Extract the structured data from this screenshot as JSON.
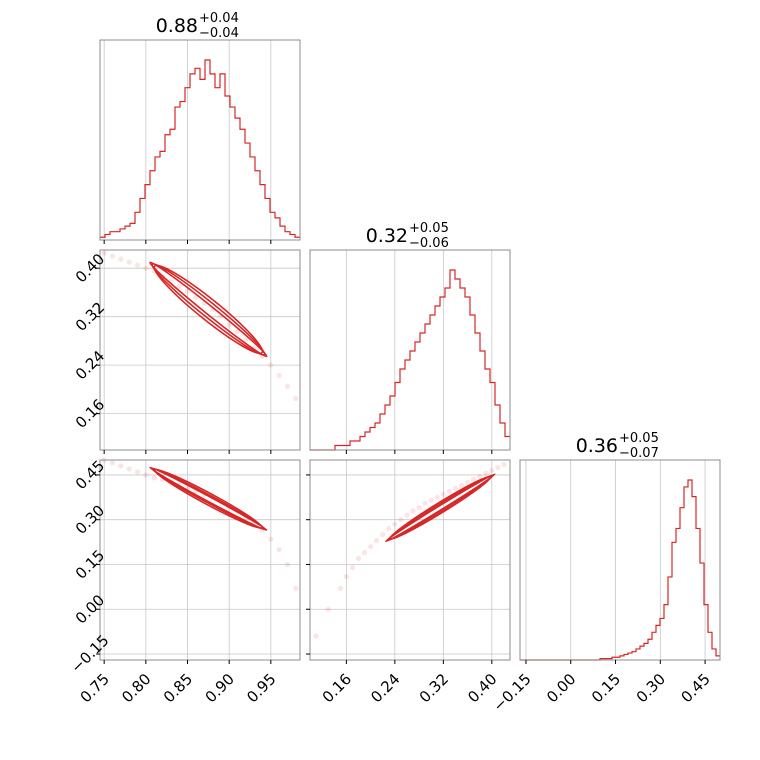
{
  "chart_data": {
    "type": "corner",
    "grid": true,
    "colors": {
      "series": "#d62728"
    },
    "parameters": [
      {
        "title": "0.88",
        "plus": "+0.04",
        "minus": "−0.04",
        "range": [
          0.745,
          0.985
        ],
        "ticks": [
          0.75,
          0.8,
          0.85,
          0.9,
          0.95
        ],
        "tick_labels": [
          "0.75",
          "0.80",
          "0.85",
          "0.90",
          "0.95"
        ]
      },
      {
        "title": "0.32",
        "plus": "+0.05",
        "minus": "−0.06",
        "range": [
          0.1,
          0.43
        ],
        "ticks": [
          0.16,
          0.24,
          0.32,
          0.4
        ],
        "tick_labels": [
          "0.16",
          "0.24",
          "0.32",
          "0.40"
        ]
      },
      {
        "title": "0.36",
        "plus": "+0.05",
        "minus": "−0.07",
        "range": [
          -0.17,
          0.5
        ],
        "ticks": [
          -0.15,
          0.0,
          0.15,
          0.3,
          0.45
        ],
        "tick_labels": [
          "−0.15",
          "0.00",
          "0.15",
          "0.30",
          "0.45"
        ]
      }
    ],
    "histograms": [
      {
        "param": 0,
        "values": [
          1,
          2,
          3,
          3,
          4,
          5,
          6,
          10,
          15,
          20,
          25,
          30,
          32,
          38,
          40,
          48,
          50,
          55,
          60,
          62,
          58,
          65,
          60,
          55,
          60,
          52,
          48,
          44,
          40,
          35,
          30,
          25,
          20,
          15,
          10,
          8,
          5,
          3,
          2,
          1
        ]
      },
      {
        "param": 1,
        "values": [
          0,
          0,
          0,
          0,
          0,
          1,
          1,
          1,
          2,
          2,
          3,
          4,
          5,
          6,
          8,
          10,
          12,
          15,
          18,
          20,
          22,
          24,
          26,
          28,
          30,
          32,
          34,
          36,
          40,
          38,
          36,
          34,
          30,
          26,
          22,
          18,
          15,
          10,
          6,
          3
        ]
      },
      {
        "param": 2,
        "values": [
          0,
          0,
          0,
          0,
          0,
          0,
          0,
          0,
          0,
          0,
          0,
          0,
          0,
          0,
          0,
          0,
          0,
          0,
          0,
          0,
          1,
          1,
          1,
          2,
          2,
          3,
          4,
          5,
          6,
          8,
          10,
          12,
          15,
          20,
          25,
          30,
          40,
          60,
          85,
          95,
          110,
          125,
          130,
          118,
          95,
          70,
          40,
          20,
          8,
          3
        ]
      }
    ],
    "scatter": [
      {
        "x_param": 0,
        "y_param": 1,
        "points": [
          [
            0.75,
            0.425
          ],
          [
            0.76,
            0.42
          ],
          [
            0.77,
            0.415
          ],
          [
            0.78,
            0.41
          ],
          [
            0.79,
            0.405
          ],
          [
            0.8,
            0.4
          ],
          [
            0.81,
            0.395
          ],
          [
            0.82,
            0.385
          ],
          [
            0.83,
            0.378
          ],
          [
            0.84,
            0.37
          ],
          [
            0.85,
            0.362
          ],
          [
            0.86,
            0.352
          ],
          [
            0.87,
            0.342
          ],
          [
            0.88,
            0.332
          ],
          [
            0.89,
            0.32
          ],
          [
            0.9,
            0.307
          ],
          [
            0.91,
            0.295
          ],
          [
            0.92,
            0.282
          ],
          [
            0.93,
            0.268
          ],
          [
            0.94,
            0.254
          ],
          [
            0.95,
            0.24
          ],
          [
            0.96,
            0.223
          ],
          [
            0.97,
            0.205
          ],
          [
            0.98,
            0.185
          ]
        ]
      },
      {
        "x_param": 0,
        "y_param": 2,
        "points": [
          [
            0.75,
            0.5
          ],
          [
            0.76,
            0.49
          ],
          [
            0.77,
            0.48
          ],
          [
            0.78,
            0.47
          ],
          [
            0.79,
            0.46
          ],
          [
            0.8,
            0.45
          ],
          [
            0.81,
            0.44
          ],
          [
            0.82,
            0.435
          ],
          [
            0.83,
            0.425
          ],
          [
            0.84,
            0.415
          ],
          [
            0.85,
            0.405
          ],
          [
            0.86,
            0.395
          ],
          [
            0.87,
            0.385
          ],
          [
            0.88,
            0.375
          ],
          [
            0.89,
            0.36
          ],
          [
            0.9,
            0.345
          ],
          [
            0.91,
            0.33
          ],
          [
            0.92,
            0.31
          ],
          [
            0.93,
            0.29
          ],
          [
            0.94,
            0.265
          ],
          [
            0.95,
            0.235
          ],
          [
            0.96,
            0.2
          ],
          [
            0.97,
            0.15
          ],
          [
            0.98,
            0.07
          ]
        ]
      },
      {
        "x_param": 1,
        "y_param": 2,
        "points": [
          [
            0.11,
            -0.09
          ],
          [
            0.13,
            0.0
          ],
          [
            0.15,
            0.07
          ],
          [
            0.16,
            0.11
          ],
          [
            0.17,
            0.14
          ],
          [
            0.18,
            0.17
          ],
          [
            0.19,
            0.19
          ],
          [
            0.2,
            0.21
          ],
          [
            0.21,
            0.23
          ],
          [
            0.22,
            0.25
          ],
          [
            0.23,
            0.27
          ],
          [
            0.24,
            0.285
          ],
          [
            0.25,
            0.3
          ],
          [
            0.26,
            0.315
          ],
          [
            0.27,
            0.33
          ],
          [
            0.28,
            0.34
          ],
          [
            0.29,
            0.355
          ],
          [
            0.3,
            0.365
          ],
          [
            0.31,
            0.375
          ],
          [
            0.32,
            0.385
          ],
          [
            0.33,
            0.395
          ],
          [
            0.34,
            0.405
          ],
          [
            0.35,
            0.415
          ],
          [
            0.36,
            0.425
          ],
          [
            0.37,
            0.435
          ],
          [
            0.38,
            0.445
          ],
          [
            0.39,
            0.455
          ],
          [
            0.4,
            0.465
          ],
          [
            0.41,
            0.475
          ],
          [
            0.42,
            0.485
          ]
        ]
      }
    ],
    "contours": [
      {
        "x_param": 0,
        "y_param": 1,
        "center": [
          0.875,
          0.332
        ],
        "p1": [
          0.81,
          0.4
        ],
        "p2": [
          0.95,
          0.245
        ],
        "widths": [
          0.007,
          0.012,
          0.017
        ]
      },
      {
        "x_param": 0,
        "y_param": 2,
        "center": [
          0.875,
          0.37
        ],
        "p1": [
          0.81,
          0.44
        ],
        "p2": [
          0.95,
          0.23
        ],
        "widths": [
          0.008,
          0.013,
          0.019
        ]
      },
      {
        "x_param": 1,
        "y_param": 2,
        "center": [
          0.315,
          0.34
        ],
        "p1": [
          0.22,
          0.225
        ],
        "p2": [
          0.4,
          0.45
        ],
        "widths": [
          0.007,
          0.012,
          0.017
        ]
      }
    ]
  }
}
